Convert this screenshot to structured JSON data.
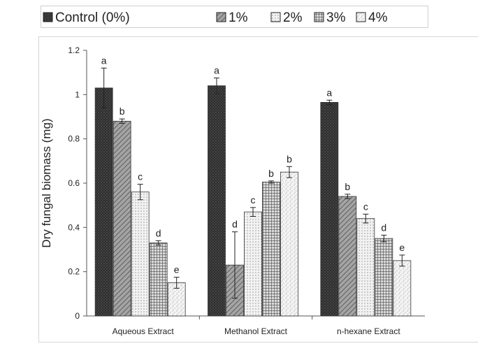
{
  "chart_data": {
    "type": "bar",
    "categories": [
      "Aqueous Extract",
      "Methanol Extract",
      "n-hexane Extract"
    ],
    "ylabel": "Dry fungal biomass (mg)",
    "xlabel": "",
    "ylim": [
      0,
      1.2
    ],
    "yticks": [
      0,
      0.2,
      0.4,
      0.6,
      0.8,
      1,
      1.2
    ],
    "ytick_labels": [
      "0",
      "0.2",
      "0.4",
      "0.6",
      "0.8",
      "1",
      "1.2"
    ],
    "grid": false,
    "legend_position": "top",
    "series": [
      {
        "name": "Control (0%)",
        "values": [
          1.03,
          1.04,
          0.965
        ],
        "errors": [
          0.09,
          0.035,
          0.01
        ],
        "letters": [
          "a",
          "a",
          "a"
        ],
        "pattern": "dark-dots",
        "color": "#2e2e2e"
      },
      {
        "name": "1%",
        "values": [
          0.88,
          0.23,
          0.54
        ],
        "errors": [
          0.01,
          0.15,
          0.01
        ],
        "letters": [
          "b",
          "d",
          "b"
        ],
        "pattern": "diagonal",
        "color": "#8a8a8a"
      },
      {
        "name": "2%",
        "values": [
          0.56,
          0.47,
          0.44
        ],
        "errors": [
          0.035,
          0.02,
          0.02
        ],
        "letters": [
          "c",
          "c",
          "c"
        ],
        "pattern": "light-dots",
        "color": "#e6e6e6"
      },
      {
        "name": "3%",
        "values": [
          0.33,
          0.605,
          0.35
        ],
        "errors": [
          0.01,
          0.005,
          0.015
        ],
        "letters": [
          "d",
          "b",
          "d"
        ],
        "pattern": "grid",
        "color": "#5a5a5a"
      },
      {
        "name": "4%",
        "values": [
          0.15,
          0.65,
          0.25
        ],
        "errors": [
          0.025,
          0.025,
          0.025
        ],
        "letters": [
          "e",
          "b",
          "e"
        ],
        "pattern": "speckle",
        "color": "#dcdcdc"
      }
    ]
  }
}
